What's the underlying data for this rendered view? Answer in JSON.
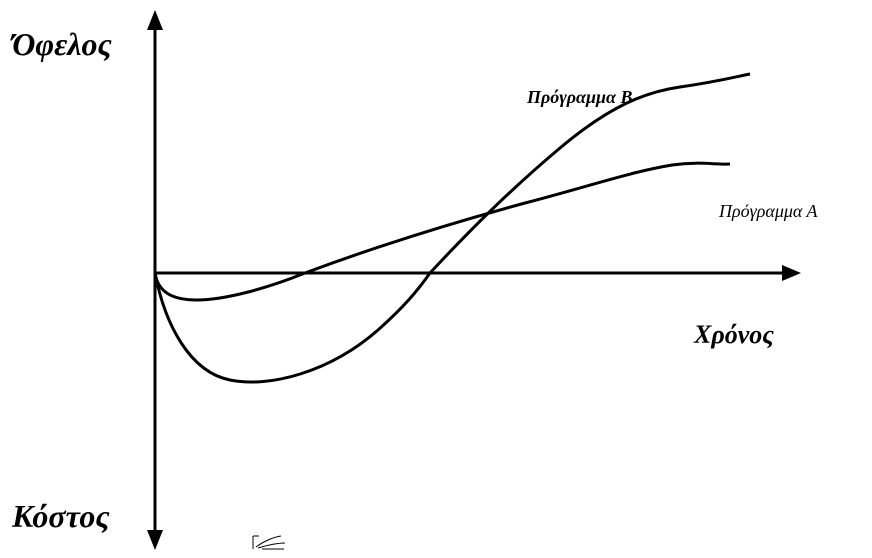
{
  "labels": {
    "y_positive": "Όφελος",
    "y_negative": "Κόστος",
    "x_axis": "Χρόνος",
    "program_b": "Πρόγραμμα Β",
    "program_a": "Πρόγραμμα Α"
  },
  "curves": [
    {
      "id": "program-a",
      "shape": "shallow dip below the time axis, then a steady rise that levels off"
    },
    {
      "id": "program-b",
      "shape": "deep dip below the time axis, then a steep rise that overtakes program A"
    }
  ],
  "colors": {
    "ink": "#000000",
    "background": "#ffffff"
  }
}
